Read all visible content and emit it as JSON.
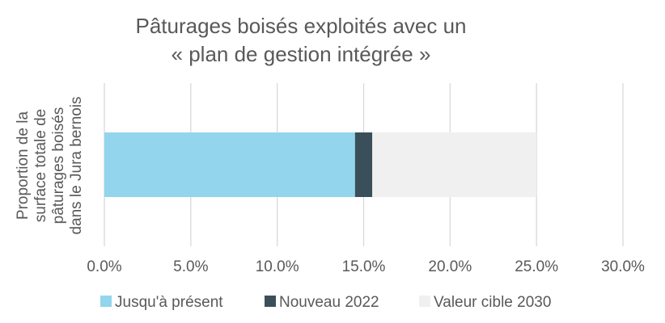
{
  "chart_data": {
    "type": "bar",
    "orientation": "horizontal",
    "stacked": true,
    "title_lines": [
      "Pâturages boisés exploités avec un",
      "« plan de gestion intégrée »"
    ],
    "ylabel_lines": [
      "Proportion de la",
      "surface totale de",
      "pâturages boisés",
      "dans le Jura bernois"
    ],
    "xlabel": "",
    "xlim": [
      0,
      30
    ],
    "xticks": [
      "0.0%",
      "5.0%",
      "10.0%",
      "15.0%",
      "20.0%",
      "25.0%",
      "30.0%"
    ],
    "xtick_values": [
      0,
      5,
      10,
      15,
      20,
      25,
      30
    ],
    "grid": "vertical",
    "legend_position": "bottom",
    "categories": [
      ""
    ],
    "series": [
      {
        "name": "Jusqu'à présent",
        "values": [
          14.5
        ],
        "color": "#92d5ec"
      },
      {
        "name": "Nouveau 2022",
        "values": [
          1.0
        ],
        "color": "#3b4f5a"
      },
      {
        "name": "Valeur cible 2030",
        "values": [
          9.5
        ],
        "color": "#f0f0f0"
      }
    ]
  }
}
